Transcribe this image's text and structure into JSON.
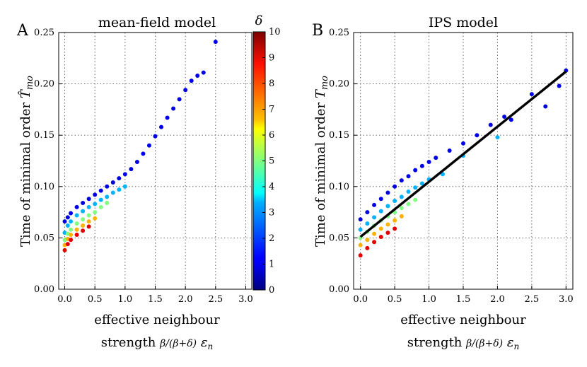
{
  "figure": {
    "colorbar": {
      "label": "δ",
      "min": 0,
      "max": 10,
      "ticks": [
        "0",
        "1",
        "2",
        "3",
        "4",
        "5",
        "6",
        "7",
        "8",
        "9",
        "10"
      ]
    }
  },
  "chart_data": [
    {
      "type": "scatter",
      "panel": "A",
      "title": "mean-field model",
      "xlabel_line1": "effective neighbour",
      "xlabel_line2": "strength β/(β+δ) ε_n",
      "ylabel": "Time of minimal order T̂_mo",
      "xlim": [
        -0.1,
        3.1
      ],
      "ylim": [
        0.0,
        0.25
      ],
      "xticks": [
        "0.0",
        "0.5",
        "1.0",
        "1.5",
        "2.0",
        "2.5",
        "3.0"
      ],
      "yticks": [
        "0.00",
        "0.05",
        "0.10",
        "0.15",
        "0.20",
        "0.25"
      ],
      "grid": true,
      "color_by": "delta",
      "series": [
        {
          "delta": 1,
          "x": [
            0.0,
            0.05,
            0.1,
            0.2,
            0.3,
            0.4,
            0.5,
            0.6,
            0.7,
            0.8,
            0.9,
            1.0,
            1.1,
            1.2,
            1.3,
            1.4,
            1.5,
            1.6,
            1.7,
            1.8,
            1.9,
            2.0,
            2.1,
            2.2,
            2.3,
            2.5
          ],
          "y": [
            0.066,
            0.07,
            0.074,
            0.08,
            0.084,
            0.088,
            0.092,
            0.096,
            0.1,
            0.104,
            0.108,
            0.112,
            0.117,
            0.124,
            0.132,
            0.14,
            0.149,
            0.158,
            0.167,
            0.176,
            0.185,
            0.194,
            0.203,
            0.208,
            0.211,
            0.241
          ]
        },
        {
          "delta": 3,
          "x": [
            0.0,
            0.05,
            0.1,
            0.2,
            0.3,
            0.4,
            0.5,
            0.6,
            0.7,
            0.8,
            0.9,
            1.0
          ],
          "y": [
            0.055,
            0.062,
            0.066,
            0.072,
            0.076,
            0.08,
            0.083,
            0.087,
            0.09,
            0.094,
            0.097,
            0.1
          ]
        },
        {
          "delta": 5,
          "x": [
            0.0,
            0.05,
            0.1,
            0.2,
            0.3,
            0.4,
            0.5,
            0.6,
            0.7
          ],
          "y": [
            0.048,
            0.054,
            0.058,
            0.064,
            0.068,
            0.072,
            0.075,
            0.08,
            0.084
          ]
        },
        {
          "delta": 7,
          "x": [
            0.0,
            0.05,
            0.1,
            0.2,
            0.3,
            0.4,
            0.5
          ],
          "y": [
            0.043,
            0.049,
            0.053,
            0.058,
            0.062,
            0.066,
            0.069
          ]
        },
        {
          "delta": 9,
          "x": [
            0.0,
            0.05,
            0.1,
            0.2,
            0.3,
            0.4
          ],
          "y": [
            0.038,
            0.044,
            0.048,
            0.053,
            0.057,
            0.061
          ]
        }
      ]
    },
    {
      "type": "scatter",
      "panel": "B",
      "title": "IPS model",
      "xlabel_line1": "effective neighbour",
      "xlabel_line2": "strength β/(β+δ) ε_n",
      "ylabel": "Time of minimal order T_mo",
      "xlim": [
        -0.1,
        3.1
      ],
      "ylim": [
        0.0,
        0.25
      ],
      "xticks": [
        "0.0",
        "0.5",
        "1.0",
        "1.5",
        "2.0",
        "2.5",
        "3.0"
      ],
      "yticks": [
        "0.00",
        "0.05",
        "0.10",
        "0.15",
        "0.20",
        "0.25"
      ],
      "grid": true,
      "color_by": "delta",
      "fit_line": {
        "x": [
          0.0,
          3.0
        ],
        "y": [
          0.051,
          0.212
        ],
        "color": "#000000"
      },
      "series": [
        {
          "delta": 1,
          "x": [
            0.0,
            0.1,
            0.2,
            0.3,
            0.4,
            0.5,
            0.6,
            0.7,
            0.8,
            0.9,
            1.0,
            1.1,
            1.3,
            1.5,
            1.7,
            1.9,
            2.1,
            2.2,
            2.5,
            2.7,
            2.9,
            3.0
          ],
          "y": [
            0.068,
            0.075,
            0.082,
            0.088,
            0.094,
            0.1,
            0.106,
            0.11,
            0.116,
            0.12,
            0.124,
            0.128,
            0.135,
            0.142,
            0.15,
            0.16,
            0.168,
            0.165,
            0.19,
            0.178,
            0.198,
            0.213
          ]
        },
        {
          "delta": 3,
          "x": [
            0.0,
            0.1,
            0.2,
            0.3,
            0.4,
            0.5,
            0.6,
            0.7,
            0.8,
            0.9,
            1.0,
            1.2,
            1.5,
            2.0
          ],
          "y": [
            0.058,
            0.064,
            0.07,
            0.076,
            0.081,
            0.086,
            0.09,
            0.095,
            0.099,
            0.103,
            0.107,
            0.112,
            0.13,
            0.148
          ]
        },
        {
          "delta": 5,
          "x": [
            0.0,
            0.1,
            0.2,
            0.3,
            0.4,
            0.5,
            0.6,
            0.7,
            0.8
          ],
          "y": [
            0.05,
            0.056,
            0.062,
            0.067,
            0.071,
            0.075,
            0.079,
            0.083,
            0.087
          ]
        },
        {
          "delta": 7,
          "x": [
            0.0,
            0.1,
            0.2,
            0.3,
            0.4,
            0.5,
            0.6
          ],
          "y": [
            0.043,
            0.048,
            0.054,
            0.059,
            0.063,
            0.067,
            0.071
          ]
        },
        {
          "delta": 9,
          "x": [
            0.0,
            0.1,
            0.2,
            0.3,
            0.4,
            0.5
          ],
          "y": [
            0.033,
            0.04,
            0.046,
            0.051,
            0.055,
            0.059
          ]
        }
      ]
    }
  ]
}
